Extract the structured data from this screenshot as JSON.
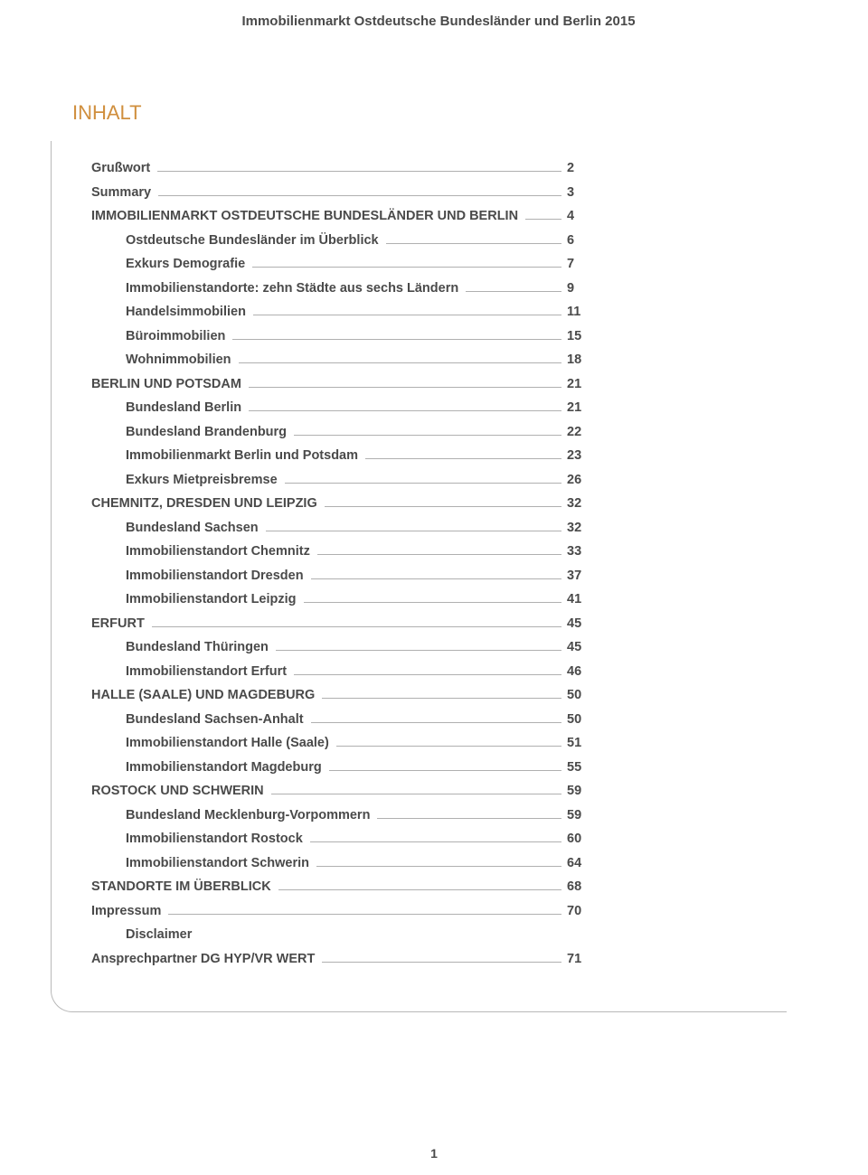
{
  "header": {
    "title": "Immobilienmarkt Ostdeutsche Bundesländer und Berlin 2015"
  },
  "section_title": "INHALT",
  "colors": {
    "accent": "#d08f3e",
    "text": "#4a4a4a",
    "rule": "#b0b0b0",
    "border": "#b8b8b8"
  },
  "toc": [
    {
      "label": "Grußwort",
      "page": "2",
      "indent": false
    },
    {
      "label": "Summary",
      "page": "3",
      "indent": false
    },
    {
      "label": "IMMOBILIENMARKT OSTDEUTSCHE BUNDESLÄNDER UND BERLIN",
      "page": "4",
      "indent": false
    },
    {
      "label": "Ostdeutsche Bundesländer im Überblick",
      "page": "6",
      "indent": true
    },
    {
      "label": "Exkurs Demografie",
      "page": "7",
      "indent": true
    },
    {
      "label": "Immobilienstandorte: zehn Städte aus sechs Ländern",
      "page": "9",
      "indent": true
    },
    {
      "label": "Handelsimmobilien",
      "page": "11",
      "indent": true
    },
    {
      "label": "Büroimmobilien",
      "page": "15",
      "indent": true
    },
    {
      "label": "Wohnimmobilien",
      "page": "18",
      "indent": true
    },
    {
      "label": "BERLIN UND POTSDAM",
      "page": "21",
      "indent": false
    },
    {
      "label": "Bundesland Berlin",
      "page": "21",
      "indent": true
    },
    {
      "label": "Bundesland Brandenburg",
      "page": "22",
      "indent": true
    },
    {
      "label": "Immobilienmarkt Berlin und Potsdam",
      "page": "23",
      "indent": true
    },
    {
      "label": "Exkurs Mietpreisbremse",
      "page": "26",
      "indent": true
    },
    {
      "label": "CHEMNITZ, DRESDEN UND LEIPZIG",
      "page": "32",
      "indent": false
    },
    {
      "label": "Bundesland Sachsen",
      "page": "32",
      "indent": true
    },
    {
      "label": "Immobilienstandort Chemnitz",
      "page": "33",
      "indent": true
    },
    {
      "label": "Immobilienstandort Dresden",
      "page": "37",
      "indent": true
    },
    {
      "label": "Immobilienstandort Leipzig",
      "page": "41",
      "indent": true
    },
    {
      "label": "ERFURT",
      "page": "45",
      "indent": false
    },
    {
      "label": "Bundesland Thüringen",
      "page": "45",
      "indent": true
    },
    {
      "label": "Immobilienstandort Erfurt",
      "page": "46",
      "indent": true
    },
    {
      "label": "HALLE (SAALE) UND MAGDEBURG",
      "page": "50",
      "indent": false
    },
    {
      "label": "Bundesland Sachsen-Anhalt",
      "page": "50",
      "indent": true
    },
    {
      "label": "Immobilienstandort Halle (Saale)",
      "page": "51",
      "indent": true
    },
    {
      "label": "Immobilienstandort Magdeburg",
      "page": "55",
      "indent": true
    },
    {
      "label": "ROSTOCK UND SCHWERIN",
      "page": "59",
      "indent": false
    },
    {
      "label": "Bundesland Mecklenburg-Vorpommern",
      "page": "59",
      "indent": true
    },
    {
      "label": "Immobilienstandort Rostock",
      "page": "60",
      "indent": true
    },
    {
      "label": "Immobilienstandort Schwerin",
      "page": "64",
      "indent": true
    },
    {
      "label": "STANDORTE IM ÜBERBLICK",
      "page": "68",
      "indent": false
    },
    {
      "label": "Impressum",
      "page": "70",
      "indent": false
    },
    {
      "label": "Disclaimer",
      "page": "",
      "indent": true,
      "no_leader": true
    },
    {
      "label": "Ansprechpartner DG HYP/VR WERT",
      "page": "71",
      "indent": false
    }
  ],
  "page_number": "1"
}
